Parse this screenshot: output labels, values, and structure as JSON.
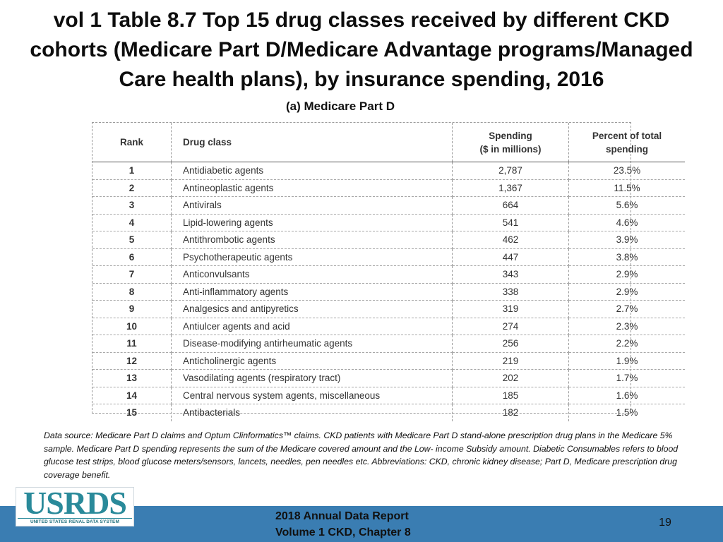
{
  "slide": {
    "title": "vol 1 Table 8.7 Top 15 drug classes received by different CKD cohorts (Medicare Part D/Medicare Advantage programs/Managed Care health plans), by insurance spending, 2016",
    "subtitle": "(a) Medicare Part D"
  },
  "table": {
    "headers": {
      "rank": "Rank",
      "drug_class": "Drug class",
      "spending_line1": "Spending",
      "spending_line2": "($ in millions)",
      "percent_line1": "Percent of total",
      "percent_line2": "spending"
    },
    "rows": [
      {
        "rank": "1",
        "drug_class": "Antidiabetic agents",
        "spending": "2,787",
        "percent": "23.5%"
      },
      {
        "rank": "2",
        "drug_class": "Antineoplastic agents",
        "spending": "1,367",
        "percent": "11.5%"
      },
      {
        "rank": "3",
        "drug_class": "Antivirals",
        "spending": "664",
        "percent": "5.6%"
      },
      {
        "rank": "4",
        "drug_class": "Lipid-lowering agents",
        "spending": "541",
        "percent": "4.6%"
      },
      {
        "rank": "5",
        "drug_class": "Antithrombotic agents",
        "spending": "462",
        "percent": "3.9%"
      },
      {
        "rank": "6",
        "drug_class": "Psychotherapeutic agents",
        "spending": "447",
        "percent": "3.8%"
      },
      {
        "rank": "7",
        "drug_class": "Anticonvulsants",
        "spending": "343",
        "percent": "2.9%"
      },
      {
        "rank": "8",
        "drug_class": "Anti-inflammatory agents",
        "spending": "338",
        "percent": "2.9%"
      },
      {
        "rank": "9",
        "drug_class": "Analgesics and antipyretics",
        "spending": "319",
        "percent": "2.7%"
      },
      {
        "rank": "10",
        "drug_class": "Antiulcer agents and acid",
        "spending": "274",
        "percent": "2.3%"
      },
      {
        "rank": "11",
        "drug_class": "Disease-modifying antirheumatic agents",
        "spending": "256",
        "percent": "2.2%"
      },
      {
        "rank": "12",
        "drug_class": "Anticholinergic agents",
        "spending": "219",
        "percent": "1.9%"
      },
      {
        "rank": "13",
        "drug_class": "Vasodilating agents (respiratory tract)",
        "spending": "202",
        "percent": "1.7%"
      },
      {
        "rank": "14",
        "drug_class": "Central nervous system agents, miscellaneous",
        "spending": "185",
        "percent": "1.6%"
      },
      {
        "rank": "15",
        "drug_class": "Antibacterials",
        "spending": "182",
        "percent": "1.5%"
      }
    ]
  },
  "footnote": "Data source: Medicare Part D claims and Optum Clinformatics™ claims. CKD patients with Medicare Part D stand-alone prescription drug plans in the Medicare 5% sample. Medicare Part D spending represents the sum of the Medicare covered amount and the Low- income Subsidy amount. Diabetic Consumables refers to blood glucose test strips, blood glucose meters/sensors, lancets, needles, pen needles etc. Abbreviations: CKD, chronic kidney disease; Part D, Medicare prescription drug coverage benefit.",
  "footer": {
    "logo_word": "USRDS",
    "logo_subtitle": "UNITED STATES RENAL DATA SYSTEM",
    "report_line1": "2018 Annual Data Report",
    "report_line2": "Volume 1 CKD, Chapter 8",
    "page_number": "19"
  },
  "colors": {
    "footer_band": "#3a7db2",
    "logo_teal": "#2a8a9a"
  }
}
